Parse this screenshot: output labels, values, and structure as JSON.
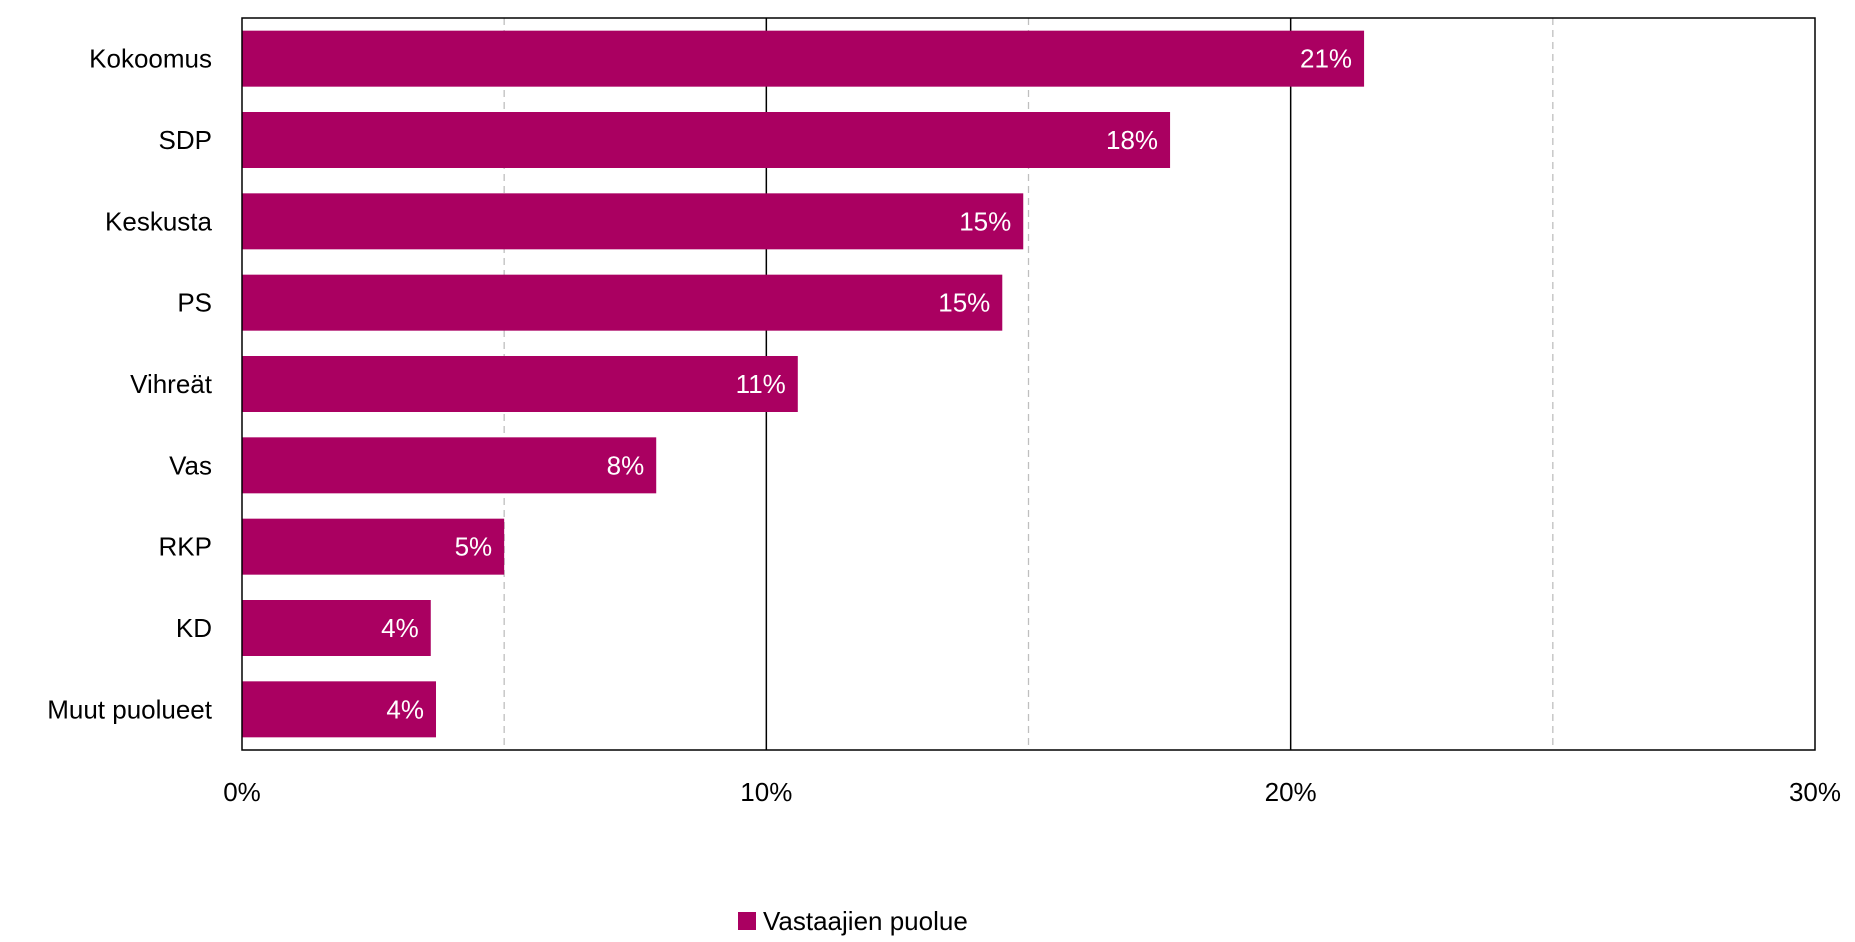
{
  "chart_data": {
    "type": "bar",
    "orientation": "horizontal",
    "categories": [
      "Kokoomus",
      "SDP",
      "Keskusta",
      "PS",
      "Vihreät",
      "Vas",
      "RKP",
      "KD",
      "Muut puolueet"
    ],
    "series": [
      {
        "name": "Vastaajien puolue",
        "values": [
          21.4,
          17.7,
          14.9,
          14.5,
          10.6,
          7.9,
          5.0,
          3.6,
          3.7
        ],
        "labels": [
          "21%",
          "18%",
          "15%",
          "15%",
          "11%",
          "8%",
          "5%",
          "4%",
          "4%"
        ]
      }
    ],
    "x_ticks": [
      "0%",
      "10%",
      "20%",
      "30%"
    ],
    "xlim": [
      0,
      30
    ],
    "major_gridlines": [
      10,
      20
    ],
    "minor_gridlines": [
      5,
      15,
      25
    ],
    "legend_position": "bottom",
    "colors": {
      "bar": "#AA0061",
      "bar_label": "#ffffff",
      "axis": "#000000",
      "major_grid": "#000000",
      "minor_grid": "#bfbfbf",
      "text": "#000000"
    }
  }
}
